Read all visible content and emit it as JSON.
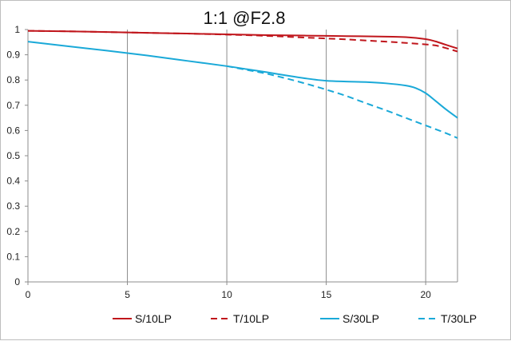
{
  "chart_data": {
    "type": "line",
    "title": "1:1  @F2.8",
    "xlabel": "",
    "ylabel": "",
    "xlim": [
      0,
      21.6
    ],
    "ylim": [
      0,
      1
    ],
    "x_ticks": [
      0,
      5,
      10,
      15,
      20
    ],
    "x_tick_labels": [
      "0",
      "5",
      "10",
      "15",
      "20"
    ],
    "y_ticks": [
      0,
      0.1,
      0.2,
      0.3,
      0.4,
      0.5,
      0.6,
      0.7,
      0.8,
      0.9,
      1
    ],
    "y_tick_labels": [
      "0",
      "0.1",
      "0.2",
      "0.3",
      "0.4",
      "0.5",
      "0.6",
      "0.7",
      "0.8",
      "0.9",
      "1"
    ],
    "grid": "vertical",
    "legend_position": "bottom",
    "series": [
      {
        "name": "S/10LP",
        "color": "#c0161c",
        "dash": "solid",
        "x": [
          0,
          2,
          4,
          6,
          8,
          10,
          12,
          14,
          16,
          18,
          19,
          20,
          20.5,
          21,
          21.6
        ],
        "y": [
          0.995,
          0.993,
          0.99,
          0.987,
          0.984,
          0.981,
          0.978,
          0.976,
          0.974,
          0.972,
          0.97,
          0.962,
          0.953,
          0.94,
          0.925
        ]
      },
      {
        "name": "T/10LP",
        "color": "#c0161c",
        "dash": "dashed",
        "x": [
          0,
          2,
          4,
          6,
          8,
          10,
          12,
          14,
          16,
          18,
          19,
          20,
          20.5,
          21,
          21.6
        ],
        "y": [
          0.995,
          0.993,
          0.99,
          0.987,
          0.984,
          0.98,
          0.975,
          0.968,
          0.961,
          0.952,
          0.947,
          0.941,
          0.937,
          0.927,
          0.913
        ]
      },
      {
        "name": "S/30LP",
        "color": "#1aa9d8",
        "dash": "solid",
        "x": [
          0,
          2,
          4,
          6,
          8,
          10,
          11,
          12,
          13,
          14,
          15,
          16,
          17,
          18,
          19,
          19.5,
          20,
          20.5,
          21,
          21.6
        ],
        "y": [
          0.952,
          0.934,
          0.916,
          0.897,
          0.876,
          0.855,
          0.843,
          0.831,
          0.818,
          0.806,
          0.797,
          0.794,
          0.792,
          0.787,
          0.778,
          0.768,
          0.748,
          0.717,
          0.685,
          0.65
        ]
      },
      {
        "name": "T/30LP",
        "color": "#1aa9d8",
        "dash": "dashed",
        "x": [
          10,
          11,
          12,
          13,
          14,
          15,
          16,
          17,
          18,
          19,
          20,
          21,
          21.6
        ],
        "y": [
          0.855,
          0.84,
          0.825,
          0.806,
          0.785,
          0.762,
          0.737,
          0.708,
          0.68,
          0.65,
          0.62,
          0.59,
          0.57
        ]
      }
    ]
  }
}
